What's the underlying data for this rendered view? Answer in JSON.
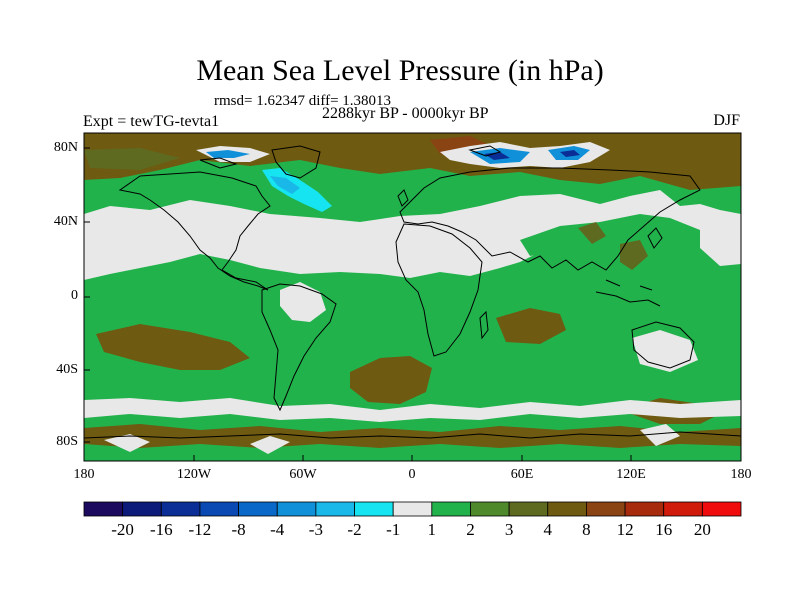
{
  "title": "Mean Sea Level Pressure (in hPa)",
  "stats": "rmsd= 1.62347  diff= 1.38013",
  "period": "2288kyr BP - 0000kyr BP",
  "experiment": "Expt = tewTG-tevta1",
  "season": "DJF",
  "lat_ticks": [
    "80N",
    "40N",
    "0",
    "40S",
    "80S"
  ],
  "lon_ticks": [
    "180",
    "120W",
    "60W",
    "0",
    "60E",
    "120E",
    "180"
  ],
  "colorbar": {
    "labels": [
      "-20",
      "-16",
      "-12",
      "-8",
      "-4",
      "-3",
      "-2",
      "-1",
      "1",
      "2",
      "3",
      "4",
      "8",
      "12",
      "16",
      "20"
    ],
    "colors": [
      "#1c0a5e",
      "#0c1a7a",
      "#0a2e96",
      "#0a48b4",
      "#0a68c8",
      "#1090d8",
      "#19b8e8",
      "#16e4f0",
      "#e8e8e8",
      "#22b24c",
      "#4e8a2c",
      "#5e6a20",
      "#6e5a10",
      "#8a4414",
      "#a82a0c",
      "#d01a0a",
      "#f00c0c"
    ]
  },
  "colors": {
    "background": "#ffffff",
    "weak_positive": "#22b24c",
    "neutral": "#e8e8e8",
    "strong_positive": "#6e5a10"
  }
}
